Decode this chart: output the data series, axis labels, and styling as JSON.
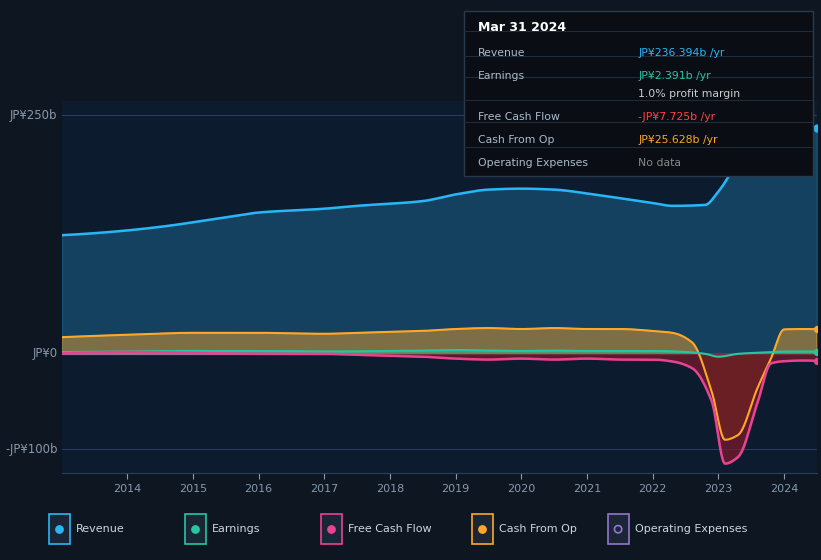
{
  "bg_color": "#0e1621",
  "chart_bg_color": "#0d1b2e",
  "revenue_color": "#29b6f6",
  "earnings_color": "#26c6a0",
  "fcf_color": "#e84393",
  "cashop_color": "#ffa726",
  "opex_color": "#9575cd",
  "fcf_neg_fill": "#7b1a2a",
  "cashop_neg_fill": "#6b3a10",
  "ylim_top": 265,
  "ylim_bottom": -125,
  "ylabel_top": "JP¥250b",
  "ylabel_zero": "JP¥0",
  "ylabel_bottom": "-JP¥100b",
  "rev_x": [
    2013.2,
    2013.8,
    2014.5,
    2015.5,
    2016.0,
    2017.0,
    2017.5,
    2018.5,
    2019.0,
    2019.5,
    2020.0,
    2020.5,
    2021.0,
    2021.5,
    2022.0,
    2022.3,
    2022.8,
    2023.0,
    2023.3,
    2023.7,
    2024.0,
    2024.3
  ],
  "rev_y": [
    125,
    128,
    133,
    143,
    148,
    152,
    155,
    160,
    167,
    172,
    173,
    172,
    168,
    163,
    158,
    155,
    156,
    170,
    200,
    225,
    236,
    238
  ],
  "ear_x": [
    2013.2,
    2014.0,
    2015.0,
    2016.0,
    2017.0,
    2018.0,
    2018.5,
    2019.0,
    2019.5,
    2020.0,
    2020.5,
    2021.0,
    2021.5,
    2022.0,
    2022.5,
    2022.8,
    2023.0,
    2023.3,
    2023.7,
    2024.0,
    2024.3
  ],
  "ear_y": [
    2,
    2.5,
    3,
    3,
    2.5,
    3,
    3.5,
    4,
    3.5,
    3,
    3.5,
    3,
    3,
    3,
    2,
    0,
    -3,
    0,
    1.5,
    2.4,
    2.5
  ],
  "fcf_x": [
    2013.2,
    2014.0,
    2015.0,
    2016.0,
    2017.0,
    2017.5,
    2018.0,
    2018.5,
    2019.0,
    2019.5,
    2020.0,
    2020.5,
    2021.0,
    2021.5,
    2022.0,
    2022.3,
    2022.6,
    2022.9,
    2023.1,
    2023.3,
    2023.6,
    2023.8,
    2024.0,
    2024.3
  ],
  "fcf_y": [
    1,
    2,
    1,
    0,
    0,
    -1,
    -2,
    -3,
    -5,
    -6,
    -5,
    -6,
    -5,
    -6,
    -6,
    -8,
    -15,
    -50,
    -115,
    -108,
    -50,
    -10,
    -7.7,
    -7
  ],
  "cop_x": [
    2013.2,
    2014.0,
    2015.0,
    2016.0,
    2017.0,
    2017.5,
    2018.0,
    2018.5,
    2019.0,
    2019.5,
    2020.0,
    2020.5,
    2021.0,
    2021.5,
    2022.0,
    2022.3,
    2022.6,
    2022.9,
    2023.1,
    2023.3,
    2023.6,
    2023.8,
    2024.0,
    2024.3
  ],
  "cop_y": [
    18,
    20,
    22,
    22,
    21,
    22,
    23,
    24,
    26,
    27,
    26,
    27,
    26,
    26,
    24,
    22,
    12,
    -40,
    -90,
    -85,
    -35,
    -5,
    25.6,
    26
  ],
  "info_box": {
    "date": "Mar 31 2024",
    "rows": [
      {
        "label": "Revenue",
        "value": "JP¥236.394b /yr",
        "value_color": "#29b6f6"
      },
      {
        "label": "Earnings",
        "value": "JP¥2.391b /yr",
        "value_color": "#26c6a0"
      },
      {
        "label": "",
        "value": "1.0% profit margin",
        "value_color": "#cccccc",
        "bold_prefix": "1.0%"
      },
      {
        "label": "Free Cash Flow",
        "value": "-JP¥7.725b /yr",
        "value_color": "#ff4444"
      },
      {
        "label": "Cash From Op",
        "value": "JP¥25.628b /yr",
        "value_color": "#ffa726"
      },
      {
        "label": "Operating Expenses",
        "value": "No data",
        "value_color": "#888888"
      }
    ]
  },
  "legend_items": [
    {
      "label": "Revenue",
      "color": "#29b6f6",
      "filled": true
    },
    {
      "label": "Earnings",
      "color": "#26c6a0",
      "filled": true
    },
    {
      "label": "Free Cash Flow",
      "color": "#e84393",
      "filled": true
    },
    {
      "label": "Cash From Op",
      "color": "#ffa726",
      "filled": true
    },
    {
      "label": "Operating Expenses",
      "color": "#9575cd",
      "filled": false
    }
  ],
  "x_ticks": [
    2014,
    2015,
    2016,
    2017,
    2018,
    2019,
    2020,
    2021,
    2022,
    2023,
    2024
  ],
  "xlim": [
    2013.0,
    2024.5
  ]
}
